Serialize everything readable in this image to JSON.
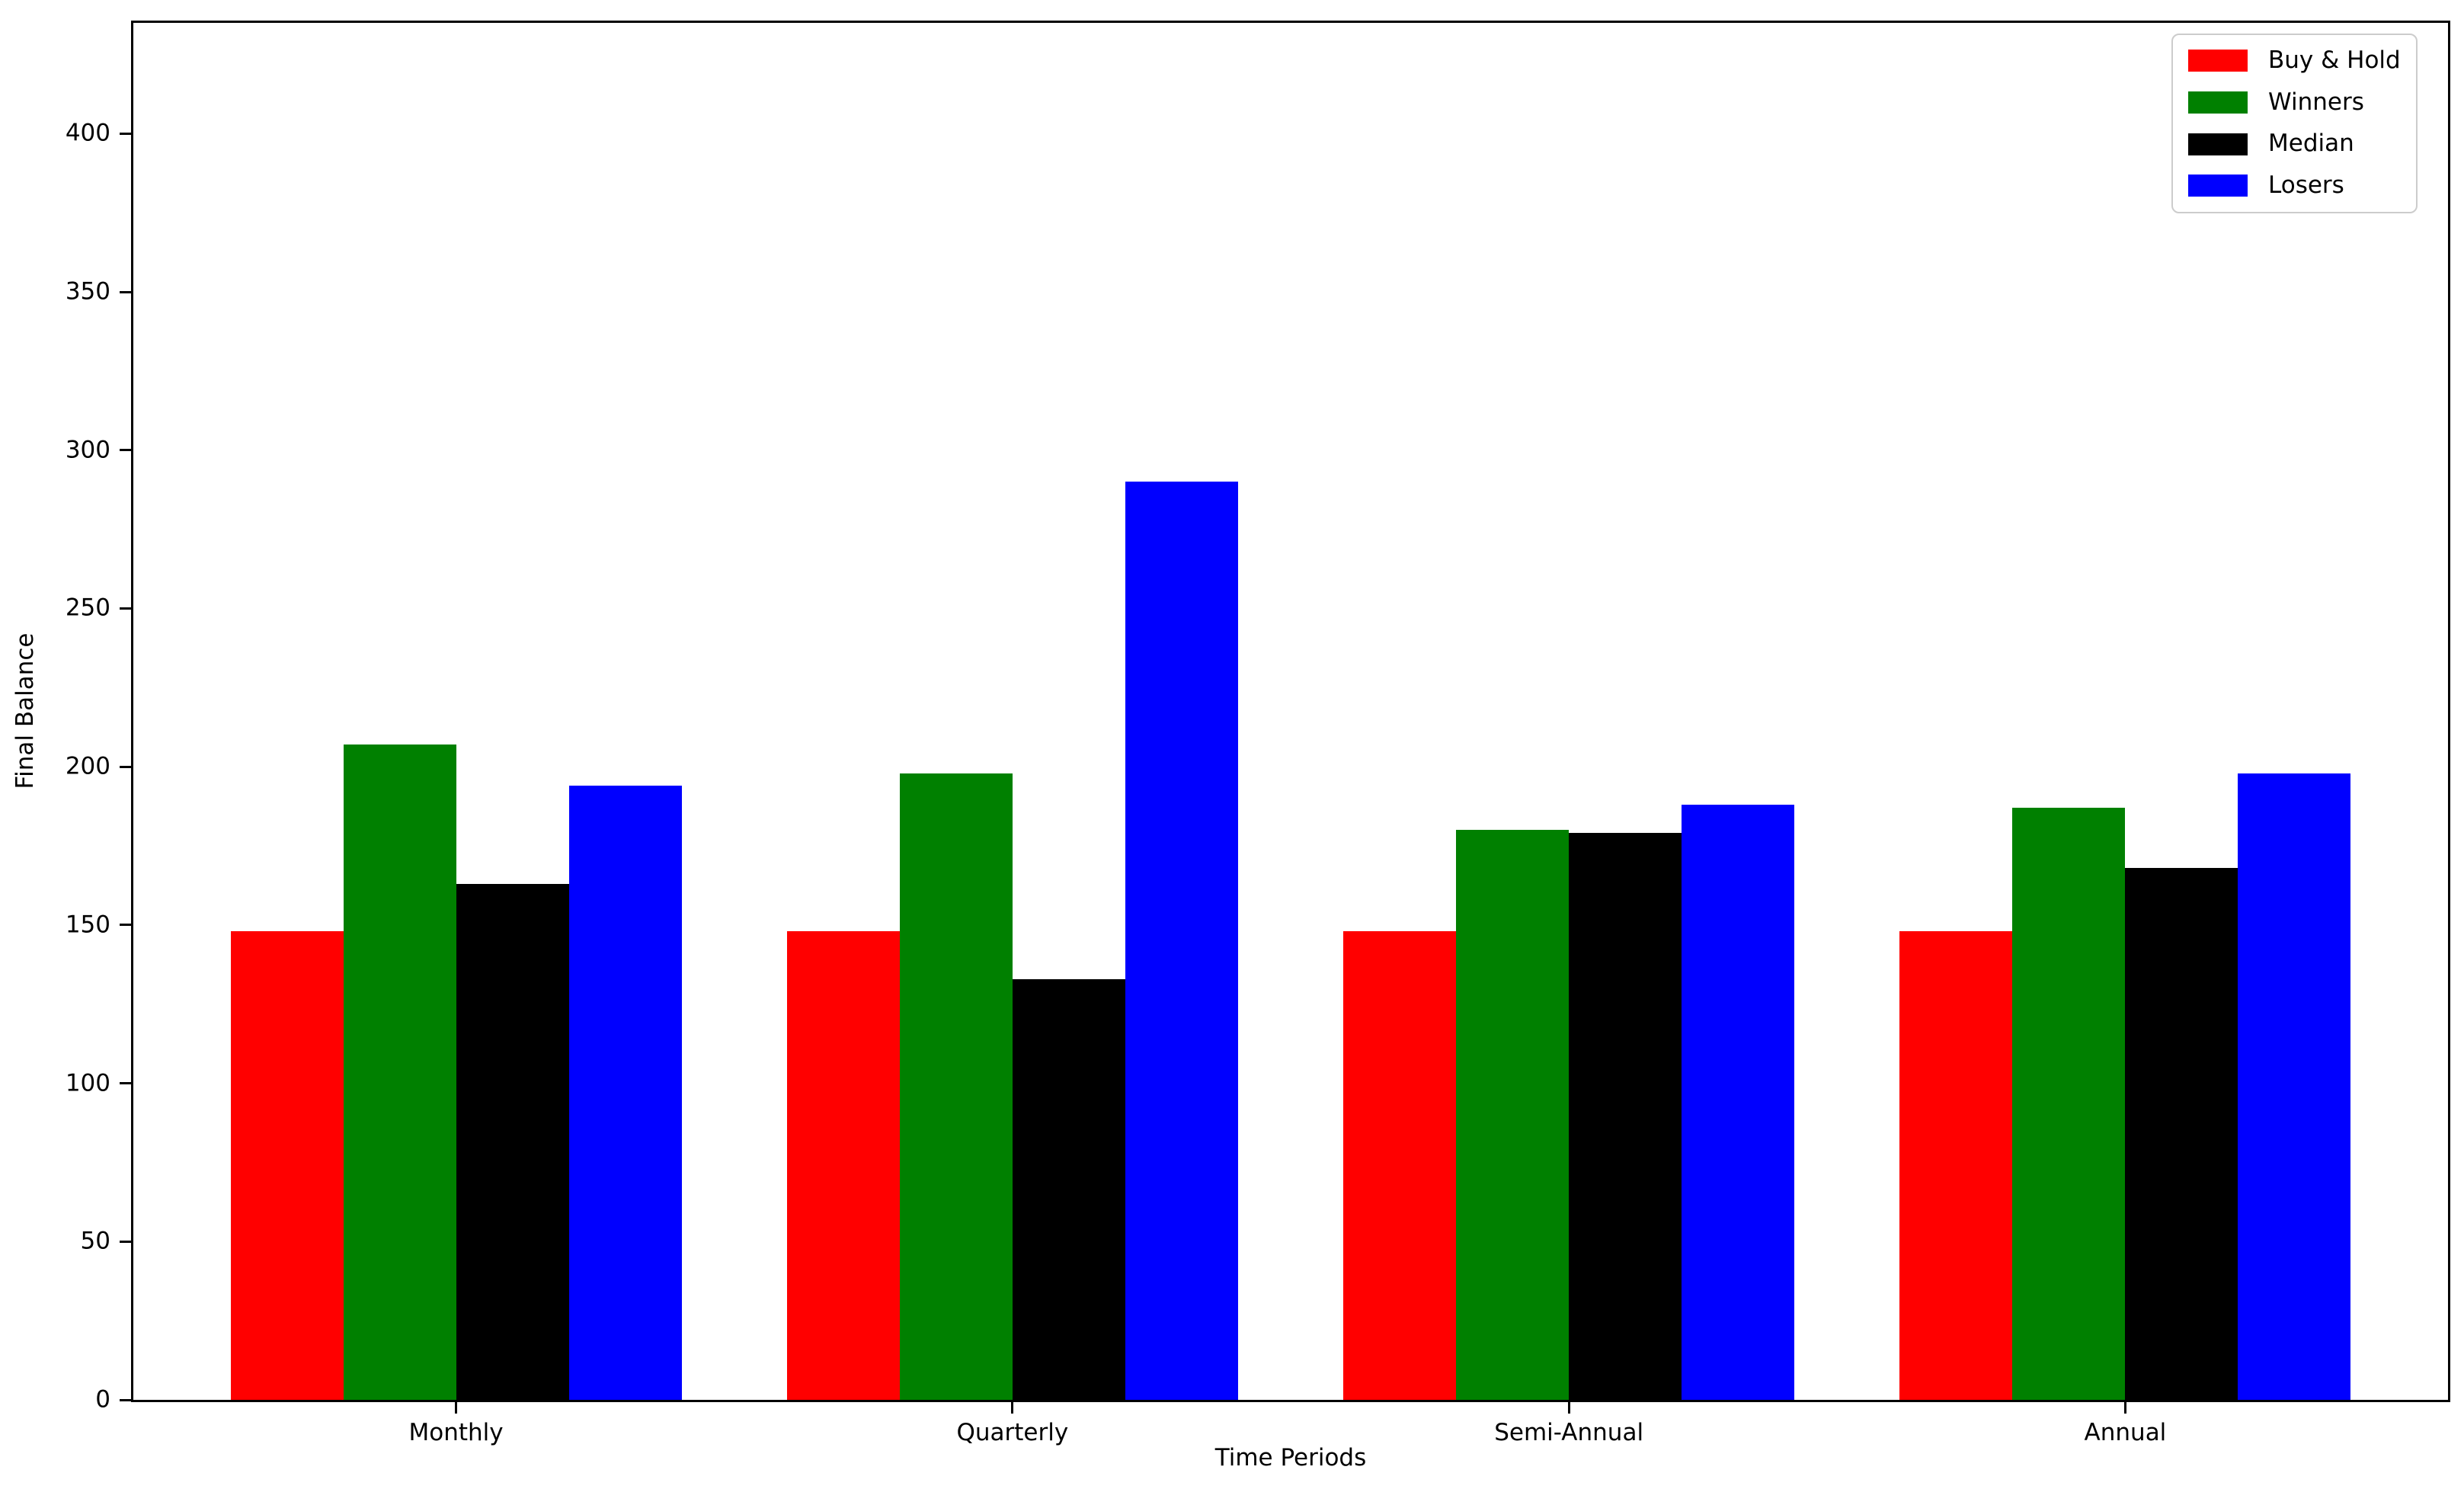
{
  "figure": {
    "background": "#ffffff",
    "axis_color": "#000000",
    "legend_border_color": "#cccccc"
  },
  "chart_data": {
    "type": "bar",
    "title": "",
    "xlabel": "Time Periods",
    "ylabel": "Final Balance",
    "categories": [
      "Monthly",
      "Quarterly",
      "Semi-Annual",
      "Annual"
    ],
    "series": [
      {
        "name": "Buy & Hold",
        "color": "#ff0000",
        "values": [
          148,
          148,
          148,
          148
        ]
      },
      {
        "name": "Winners",
        "color": "#008000",
        "values": [
          207,
          198,
          180,
          187
        ]
      },
      {
        "name": "Median",
        "color": "#000000",
        "values": [
          163,
          133,
          179,
          168
        ]
      },
      {
        "name": "Losers",
        "color": "#0000ff",
        "values": [
          194,
          290,
          188,
          198
        ]
      }
    ],
    "yticks": [
      0,
      50,
      100,
      150,
      200,
      250,
      300,
      350,
      400
    ],
    "ylim": [
      0,
      435
    ],
    "grid": false,
    "legend_position": "upper right"
  }
}
